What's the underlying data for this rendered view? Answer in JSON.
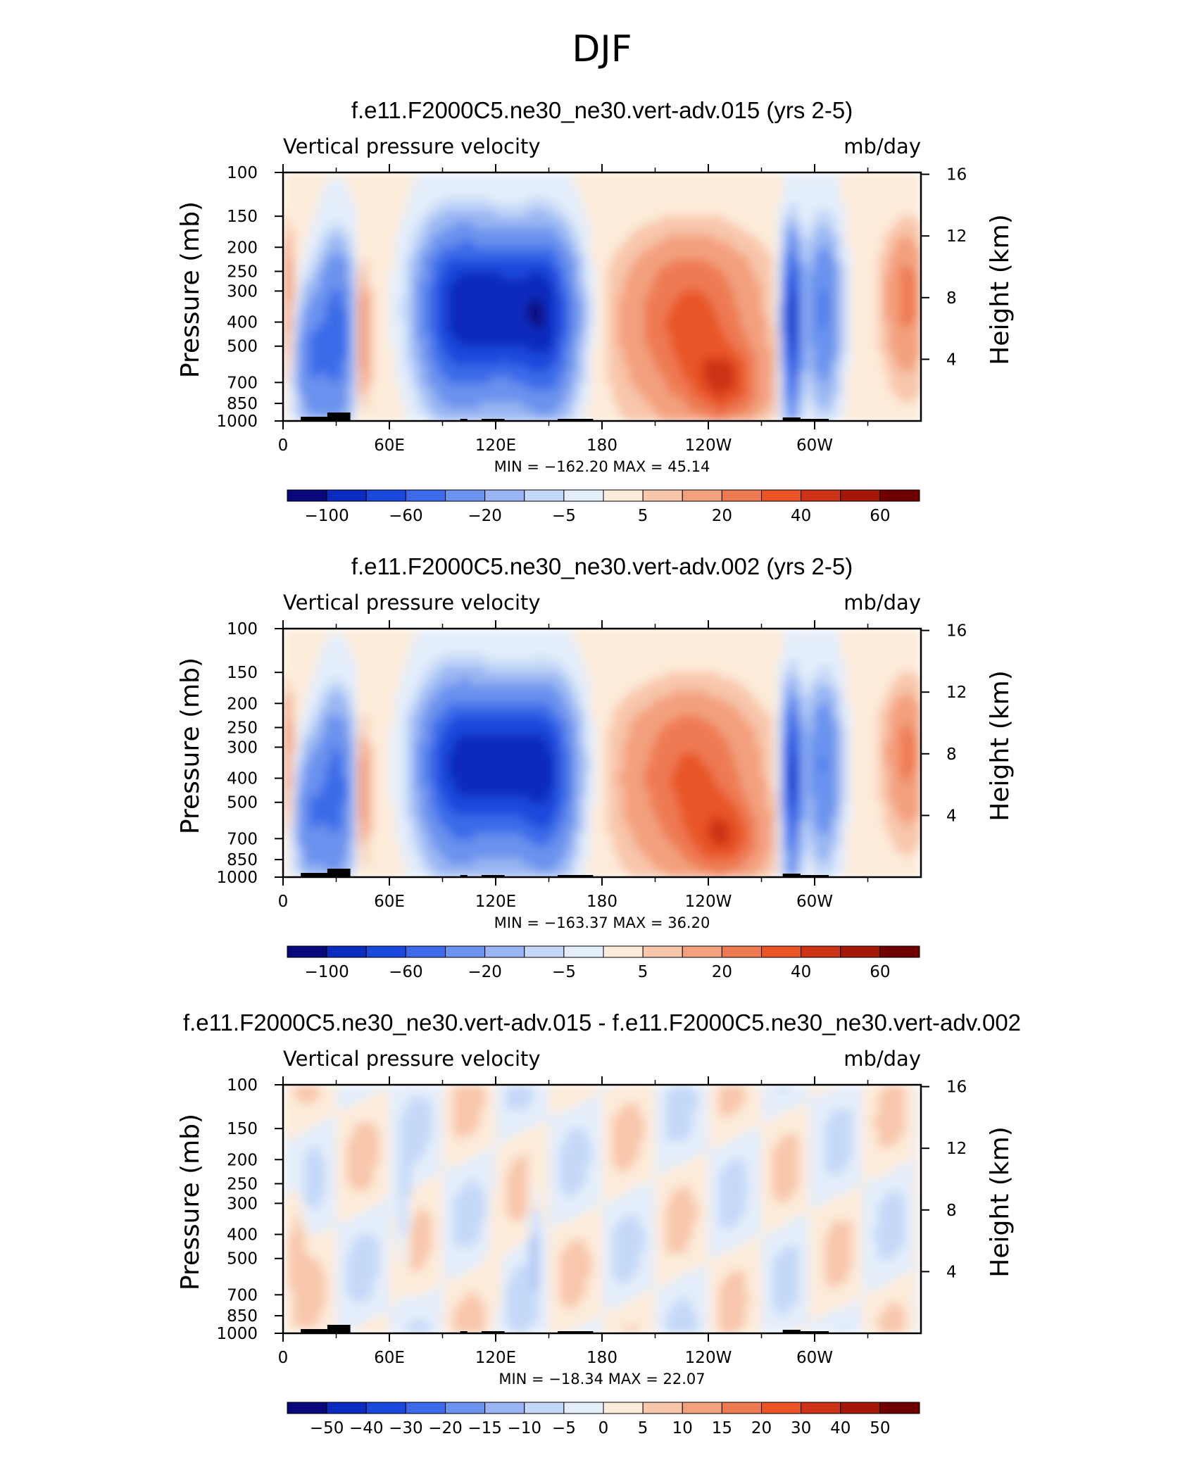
{
  "figure": {
    "main_title": "DJF"
  },
  "chart_data": [
    {
      "type": "heatmap",
      "title": "f.e11.F2000C5.ne30_ne30.vert-adv.015 (yrs 2-5)",
      "left_label": "Vertical pressure velocity",
      "units": "mb/day",
      "ylabel": "Pressure (mb)",
      "y2label": "Height (km)",
      "x_ticks": [
        "0",
        "60E",
        "120E",
        "180",
        "120W",
        "60W"
      ],
      "y_ticks": [
        "100",
        "150",
        "200",
        "250",
        "300",
        "400",
        "500",
        "700",
        "850",
        "1000"
      ],
      "y2_ticks": [
        "16",
        "12",
        "8",
        "4"
      ],
      "stats": "MIN = −162.20   MAX =   45.14",
      "colorbar_labels": [
        "−100",
        "−60",
        "−20",
        "−5",
        "5",
        "20",
        "40",
        "60"
      ],
      "levels": [
        -100,
        -80,
        -60,
        -40,
        -20,
        -10,
        -5,
        0,
        5,
        10,
        20,
        30,
        40,
        50,
        60
      ],
      "min": -162.2,
      "max": 45.14
    },
    {
      "type": "heatmap",
      "title": "f.e11.F2000C5.ne30_ne30.vert-adv.002 (yrs 2-5)",
      "left_label": "Vertical pressure velocity",
      "units": "mb/day",
      "ylabel": "Pressure (mb)",
      "y2label": "Height (km)",
      "x_ticks": [
        "0",
        "60E",
        "120E",
        "180",
        "120W",
        "60W"
      ],
      "y_ticks": [
        "100",
        "150",
        "200",
        "250",
        "300",
        "400",
        "500",
        "700",
        "850",
        "1000"
      ],
      "y2_ticks": [
        "16",
        "12",
        "8",
        "4"
      ],
      "stats": "MIN = −163.37   MAX =   36.20",
      "colorbar_labels": [
        "−100",
        "−60",
        "−20",
        "−5",
        "5",
        "20",
        "40",
        "60"
      ],
      "levels": [
        -100,
        -80,
        -60,
        -40,
        -20,
        -10,
        -5,
        0,
        5,
        10,
        20,
        30,
        40,
        50,
        60
      ],
      "min": -163.37,
      "max": 36.2
    },
    {
      "type": "heatmap",
      "title": "f.e11.F2000C5.ne30_ne30.vert-adv.015 - f.e11.F2000C5.ne30_ne30.vert-adv.002",
      "left_label": "Vertical pressure velocity",
      "units": "mb/day",
      "ylabel": "Pressure (mb)",
      "y2label": "Height (km)",
      "x_ticks": [
        "0",
        "60E",
        "120E",
        "180",
        "120W",
        "60W"
      ],
      "y_ticks": [
        "100",
        "150",
        "200",
        "250",
        "300",
        "400",
        "500",
        "700",
        "850",
        "1000"
      ],
      "y2_ticks": [
        "16",
        "12",
        "8",
        "4"
      ],
      "stats": "MIN = −18.34   MAX =   22.07",
      "colorbar_labels": [
        "−50",
        "−40",
        "−30",
        "−20",
        "−15",
        "−10",
        "−5",
        "0",
        "5",
        "10",
        "15",
        "20",
        "30",
        "40",
        "50"
      ],
      "levels": [
        -50,
        -40,
        -30,
        -20,
        -15,
        -10,
        -5,
        0,
        5,
        10,
        15,
        20,
        30,
        40,
        50
      ],
      "min": -18.34,
      "max": 22.07
    }
  ],
  "colors": {
    "colorbar": [
      "#08087a",
      "#0a2bbd",
      "#1a48dc",
      "#3a6ae8",
      "#6a92ee",
      "#9ab6f2",
      "#c4d8f8",
      "#e4eefb",
      "#fdebd9",
      "#f8c6ab",
      "#f3a07e",
      "#ee7a52",
      "#e85428",
      "#cc3214",
      "#a4180a",
      "#700000"
    ]
  }
}
